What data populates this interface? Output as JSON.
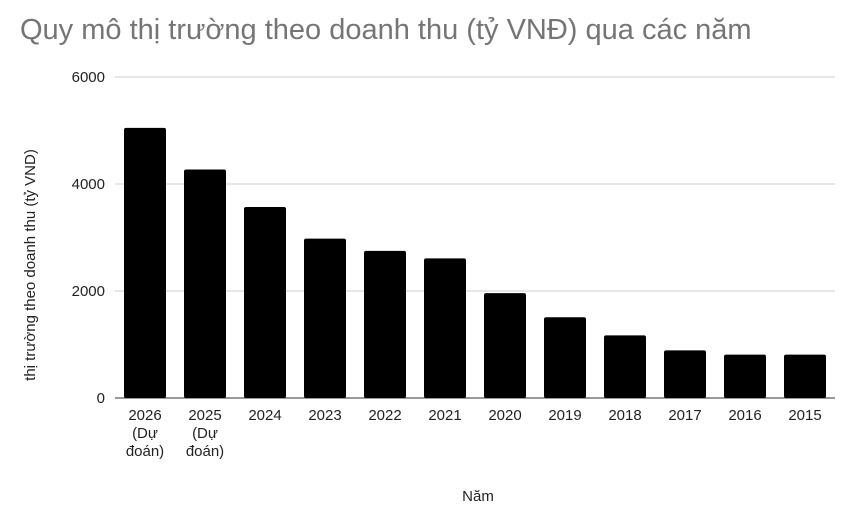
{
  "chart_data": {
    "type": "bar",
    "title": "Quy mô thị trường theo doanh thu (tỷ VNĐ) qua các năm",
    "xlabel": "Năm",
    "ylabel": "thị trường theo doanh thu (tỷ VND)",
    "categories": [
      [
        "2026",
        "(Dự",
        "đoán)"
      ],
      [
        "2025",
        "(Dự",
        "đoán)"
      ],
      [
        "2024"
      ],
      [
        "2023"
      ],
      [
        "2022"
      ],
      [
        "2021"
      ],
      [
        "2020"
      ],
      [
        "2019"
      ],
      [
        "2018"
      ],
      [
        "2017"
      ],
      [
        "2016"
      ],
      [
        "2015"
      ]
    ],
    "values": [
      5050,
      4270,
      3570,
      2980,
      2750,
      2610,
      1960,
      1510,
      1170,
      890,
      810,
      810
    ],
    "ylim": [
      0,
      6000
    ],
    "yticks": [
      0,
      2000,
      4000,
      6000
    ],
    "grid": true,
    "legend": "none",
    "bar_color": "#000000",
    "grid_color": "#cccccc",
    "title_color": "#757575"
  }
}
